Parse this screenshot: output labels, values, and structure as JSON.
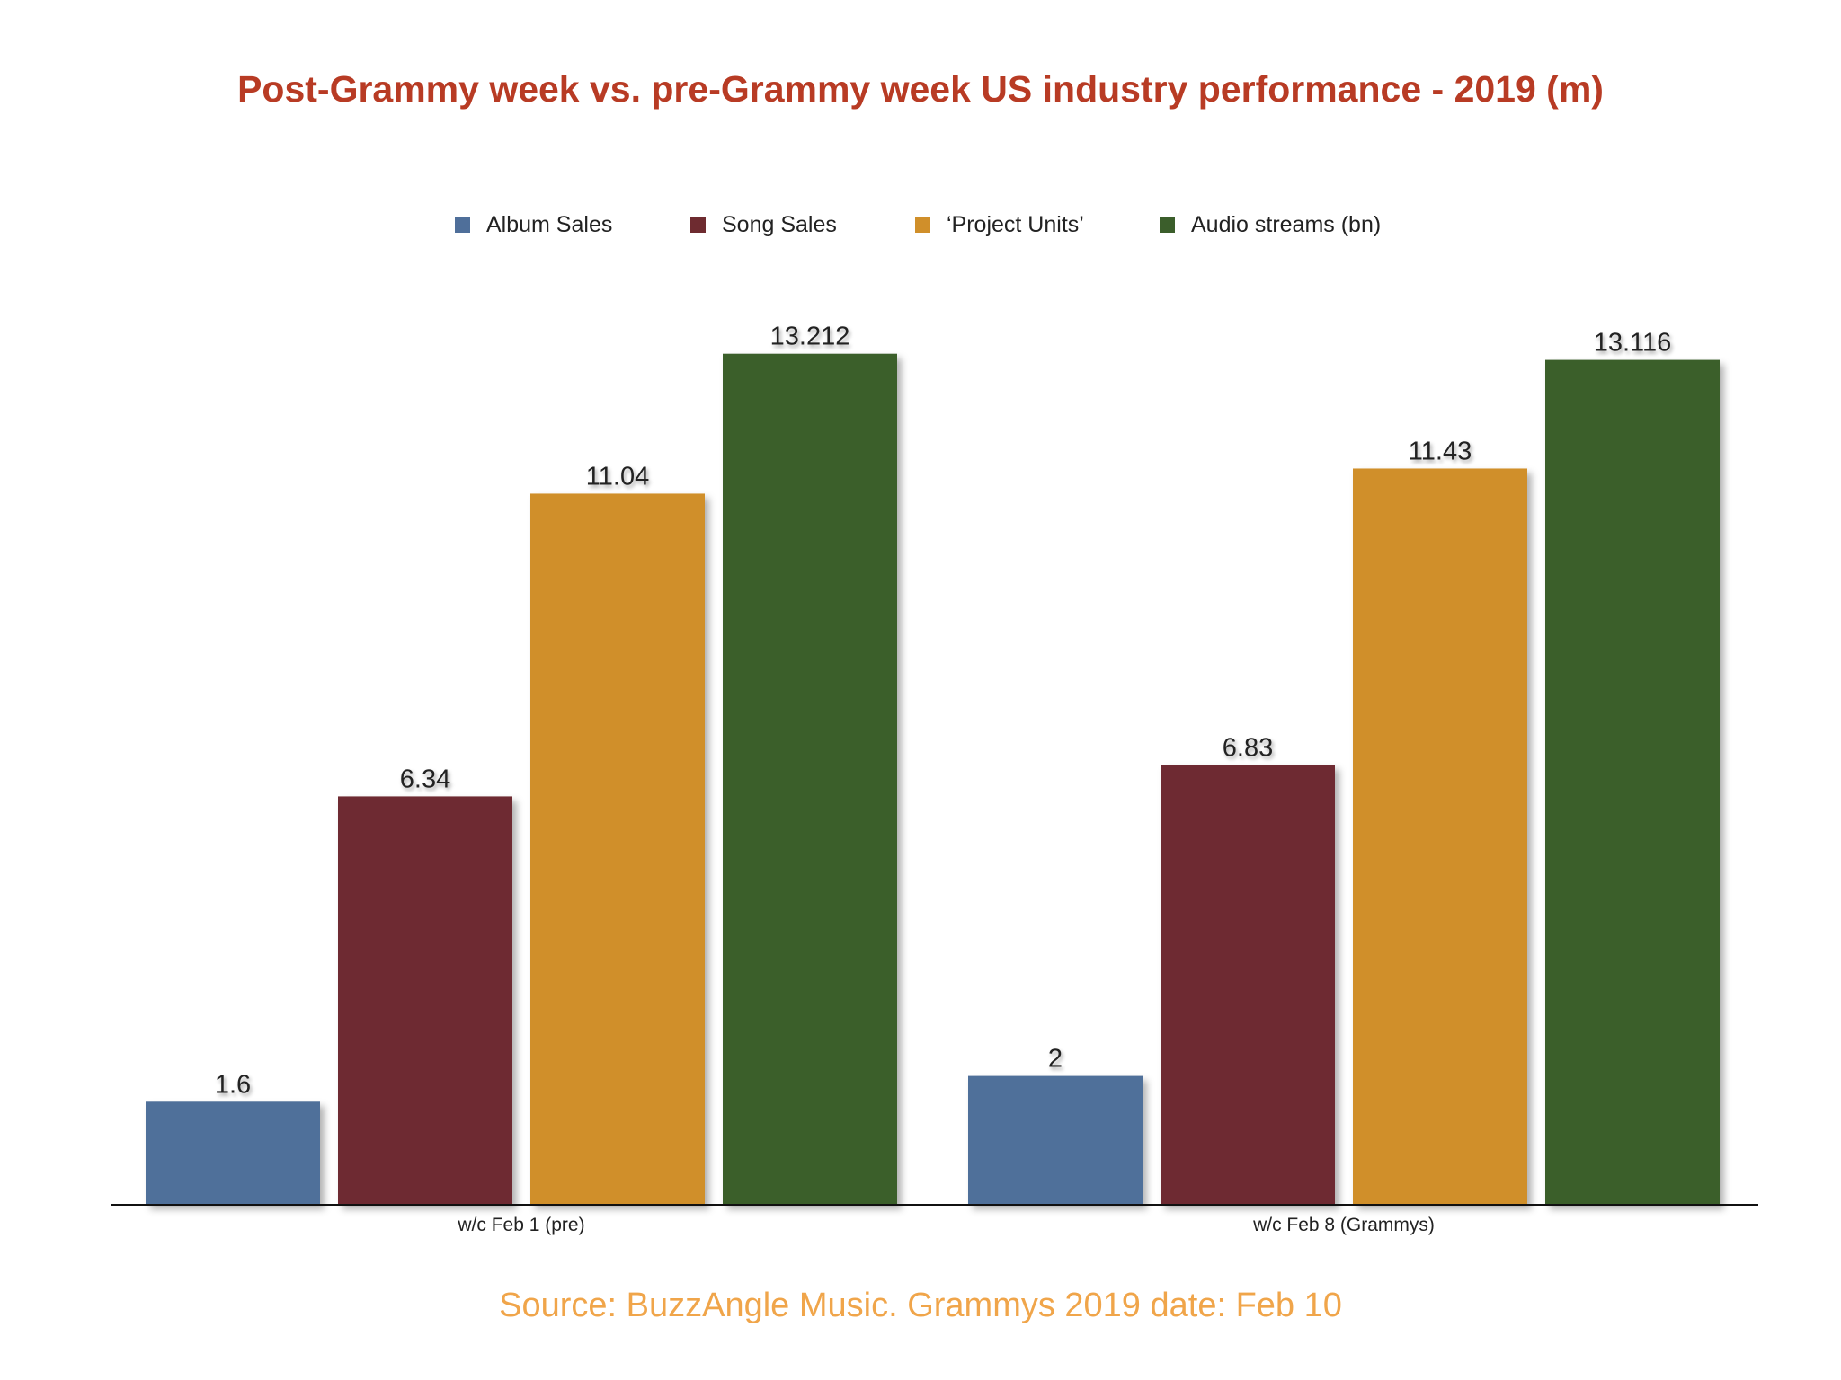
{
  "chart_data": {
    "type": "bar",
    "title": "Post-Grammy week vs. pre-Grammy week US industry performance - 2019 (m)",
    "categories": [
      "w/c Feb 1 (pre)",
      "w/c Feb 8 (Grammys)"
    ],
    "series": [
      {
        "name": "Album Sales",
        "color": "#4f6f9a",
        "values": [
          1.6,
          2
        ]
      },
      {
        "name": "Song Sales",
        "color": "#6e2b30",
        "values": [
          6.34,
          6.83
        ]
      },
      {
        "name": "‘Project Units’",
        "color": "#d08f2a",
        "values": [
          11.04,
          11.43
        ]
      },
      {
        "name": "Audio streams (bn)",
        "color": "#3b5e2b",
        "values": [
          13.212,
          13.116
        ]
      }
    ],
    "data_labels": [
      [
        "1.6",
        "2"
      ],
      [
        "6.34",
        "6.83"
      ],
      [
        "11.04",
        "11.43"
      ],
      [
        "13.212",
        "13.116"
      ]
    ],
    "ylim": [
      0,
      14.5
    ],
    "grid": false,
    "legend_position": "top-center",
    "xlabel": "",
    "ylabel": ""
  },
  "source_note": "Source: BuzzAngle Music. Grammys 2019 date: Feb 10"
}
